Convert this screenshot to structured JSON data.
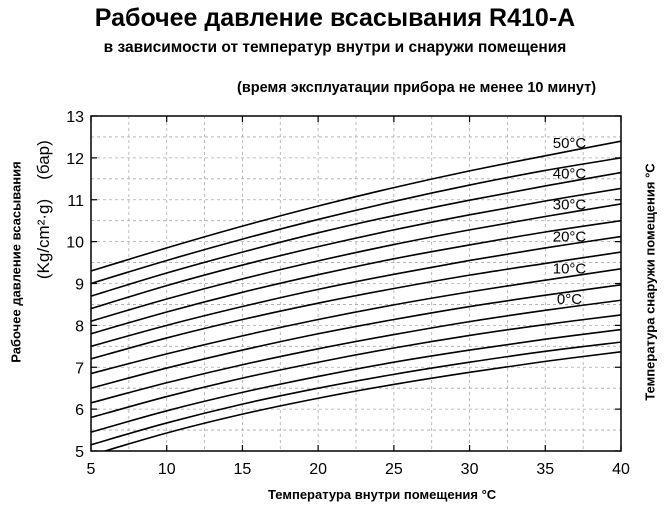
{
  "header": {
    "title": "Рабочее давление всасывания R410-A",
    "subtitle": "в зависимости от температур внутри и снаружи помещения",
    "note": "(время эксплуатации прибора не менее 10 минут)"
  },
  "axes": {
    "y_main": "Рабочее давление всасывания",
    "y_unit": "(Kg/cm²·g)",
    "y_bar": "(бар)",
    "x": "Температура внутри помещения  °С",
    "right": "Температура снаружи помещения  °С"
  },
  "colors": {
    "line": "#000000",
    "grid": "#aaaaaa",
    "frame": "#000000"
  },
  "chart_data": {
    "type": "line",
    "title": "Рабочее давление всасывания R410-A",
    "subtitle": "в зависимости от температур внутри и снаружи помещения",
    "xlabel": "Температура внутри помещения °С",
    "ylabel": "Рабочее давление всасывания (Kg/cm²·g) (бар)",
    "right_label": "Температура снаружи помещения °С",
    "xlim": [
      5,
      40
    ],
    "ylim": [
      5,
      13
    ],
    "x_ticks": [
      5,
      10,
      15,
      20,
      25,
      30,
      35,
      40
    ],
    "y_ticks": [
      5,
      6,
      7,
      8,
      9,
      10,
      11,
      12,
      13
    ],
    "grid": true,
    "x": [
      5,
      10,
      15,
      20,
      25,
      30,
      35,
      40
    ],
    "series": [
      {
        "name": "50°С",
        "values": [
          9.3,
          9.85,
          10.37,
          10.85,
          11.29,
          11.69,
          12.05,
          12.4
        ]
      },
      {
        "values": [
          9.0,
          9.55,
          10.06,
          10.53,
          10.96,
          11.35,
          11.7,
          12.0
        ]
      },
      {
        "name": "40°С",
        "values": [
          8.7,
          9.25,
          9.75,
          10.21,
          10.62,
          10.99,
          11.33,
          11.65
        ]
      },
      {
        "values": [
          8.4,
          8.95,
          9.44,
          9.88,
          10.28,
          10.64,
          10.97,
          11.27
        ]
      },
      {
        "name": "30°С",
        "values": [
          8.1,
          8.63,
          9.11,
          9.54,
          9.93,
          10.28,
          10.6,
          10.9
        ]
      },
      {
        "values": [
          7.8,
          8.32,
          8.79,
          9.21,
          9.59,
          9.92,
          10.23,
          10.5
        ]
      },
      {
        "name": "20°С",
        "values": [
          7.5,
          8.0,
          8.45,
          8.86,
          9.22,
          9.55,
          9.85,
          10.12
        ]
      },
      {
        "values": [
          7.2,
          7.7,
          8.14,
          8.53,
          8.88,
          9.2,
          9.48,
          9.75
        ]
      },
      {
        "name": "10°С",
        "values": [
          6.85,
          7.32,
          7.75,
          8.14,
          8.49,
          8.8,
          9.08,
          9.35
        ]
      },
      {
        "values": [
          6.5,
          6.98,
          7.41,
          7.8,
          8.14,
          8.45,
          8.72,
          8.97
        ]
      },
      {
        "name": "0°С",
        "values": [
          6.15,
          6.63,
          7.06,
          7.44,
          7.78,
          8.09,
          8.36,
          8.6
        ]
      },
      {
        "values": [
          5.8,
          6.3,
          6.74,
          7.12,
          7.46,
          7.76,
          8.02,
          8.25
        ]
      },
      {
        "values": [
          5.45,
          5.96,
          6.4,
          6.78,
          7.12,
          7.41,
          7.67,
          7.9
        ]
      },
      {
        "values": [
          5.15,
          5.67,
          6.12,
          6.5,
          6.83,
          7.12,
          7.38,
          7.6
        ]
      },
      {
        "values": [
          4.9,
          5.43,
          5.88,
          6.26,
          6.59,
          6.88,
          7.14,
          7.37
        ]
      }
    ]
  }
}
